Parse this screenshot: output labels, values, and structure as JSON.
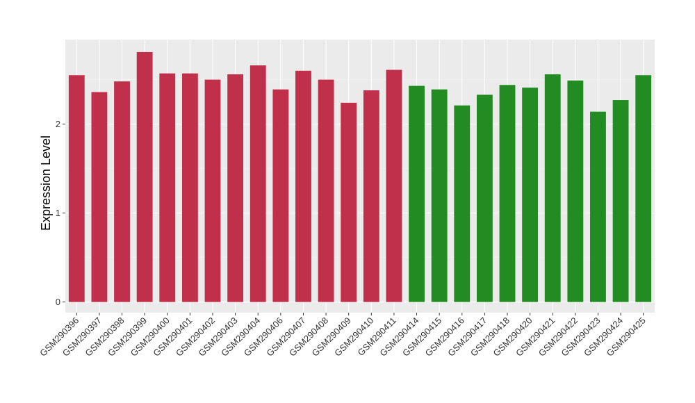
{
  "chart_data": {
    "type": "bar",
    "title": "",
    "xlabel": "",
    "ylabel": "Expression Level",
    "ylim": [
      -0.12,
      2.95
    ],
    "yticks": [
      0,
      1,
      2
    ],
    "grid": true,
    "background": "#ebebeb",
    "colors": {
      "group_a": "#c1304a",
      "group_b": "#228b22"
    },
    "categories": [
      "GSM290396",
      "GSM290397",
      "GSM290398",
      "GSM290399",
      "GSM290400",
      "GSM290401",
      "GSM290402",
      "GSM290403",
      "GSM290404",
      "GSM290406",
      "GSM290407",
      "GSM290408",
      "GSM290409",
      "GSM290410",
      "GSM290411",
      "GSM290414",
      "GSM290415",
      "GSM290416",
      "GSM290417",
      "GSM290418",
      "GSM290420",
      "GSM290421",
      "GSM290422",
      "GSM290423",
      "GSM290424",
      "GSM290425"
    ],
    "values": [
      2.55,
      2.36,
      2.48,
      2.81,
      2.57,
      2.57,
      2.5,
      2.56,
      2.66,
      2.39,
      2.6,
      2.5,
      2.24,
      2.38,
      2.61,
      2.43,
      2.39,
      2.21,
      2.33,
      2.44,
      2.41,
      2.56,
      2.49,
      2.14,
      2.27,
      2.55
    ],
    "groups": [
      "a",
      "a",
      "a",
      "a",
      "a",
      "a",
      "a",
      "a",
      "a",
      "a",
      "a",
      "a",
      "a",
      "a",
      "a",
      "b",
      "b",
      "b",
      "b",
      "b",
      "b",
      "b",
      "b",
      "b",
      "b",
      "b"
    ]
  }
}
